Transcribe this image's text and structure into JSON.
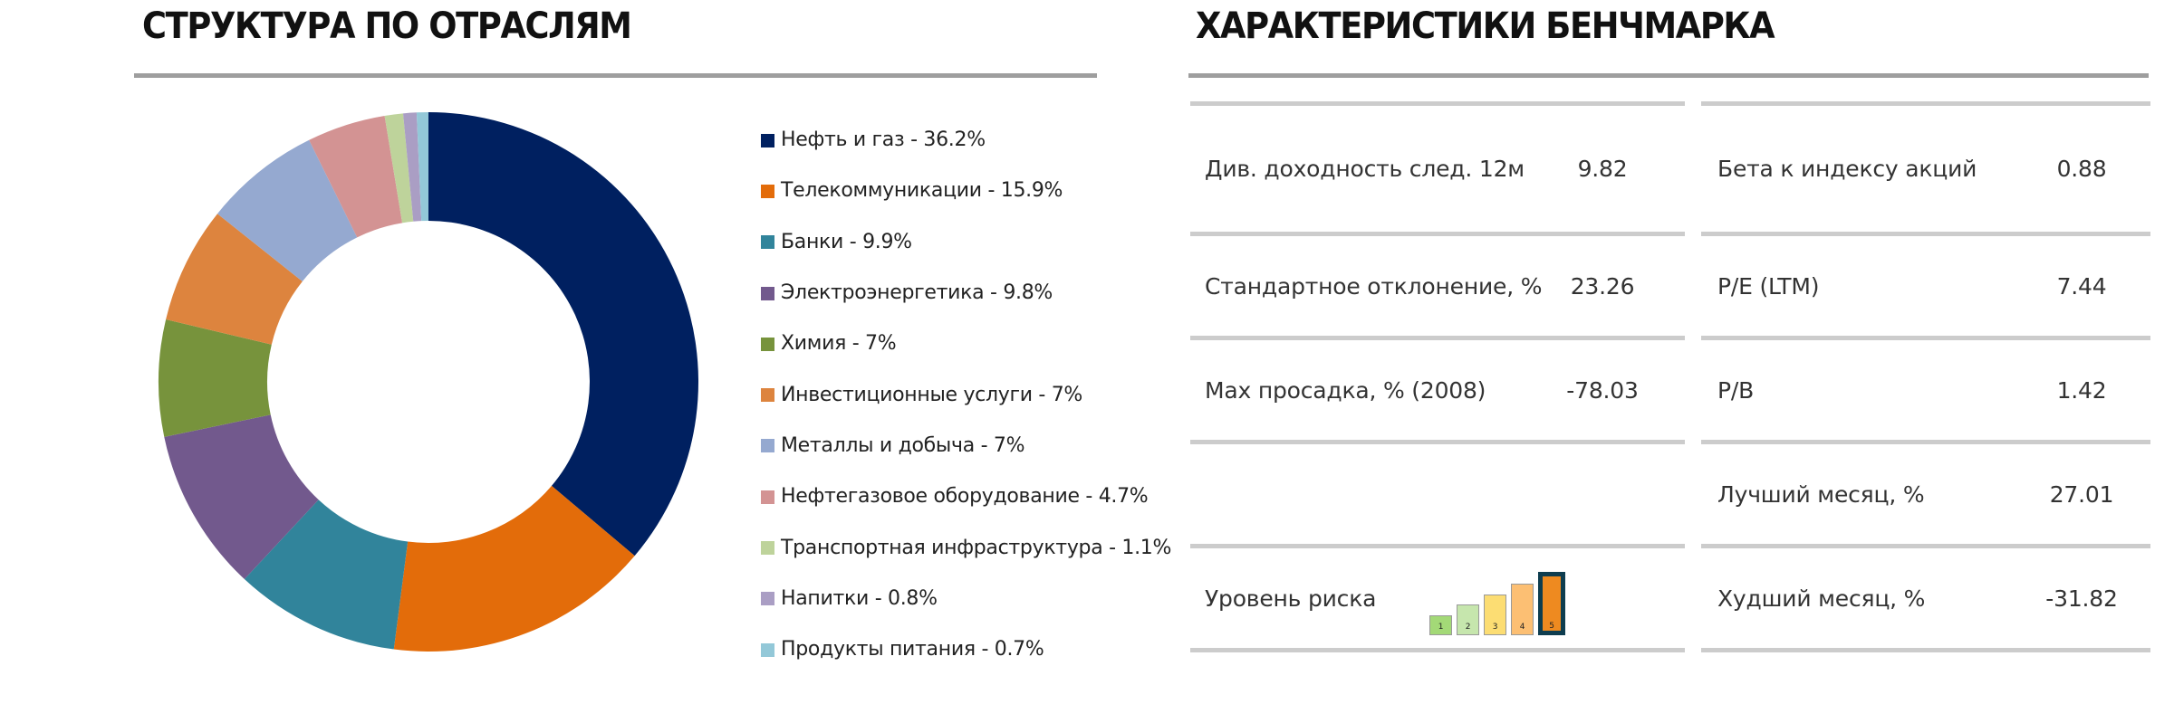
{
  "sections": {
    "structure_title": "СТРУКТУРА ПО ОТРАСЛЯМ",
    "benchmark_title": "ХАРАКТЕРИСТИКИ БЕНЧМАРКА"
  },
  "chart_data": {
    "type": "pie",
    "subtype": "donut",
    "title": "СТРУКТУРА ПО ОТРАСЛЯМ",
    "legend_position": "right",
    "categories": [
      "Нефть и газ",
      "Телекоммуникации",
      "Банки",
      "Электроэнергетика",
      "Химия",
      "Инвестиционные услуги",
      "Металлы и добыча",
      "Нефтегазовое оборудование",
      "Транспортная инфраструктура",
      "Напитки",
      "Продукты питания"
    ],
    "values": [
      36.2,
      15.9,
      9.9,
      9.8,
      7,
      7,
      7,
      4.7,
      1.1,
      0.8,
      0.7
    ],
    "colors": [
      "#002060",
      "#e36c0a",
      "#31849b",
      "#72598d",
      "#77933c",
      "#dd843e",
      "#95a9d0",
      "#d39393",
      "#bed39b",
      "#aa9ec4",
      "#93c8d8"
    ],
    "legend_labels": [
      "Нефть и газ - 36.2%",
      "Телекоммуникации - 15.9%",
      "Банки - 9.9%",
      "Электроэнергетика - 9.8%",
      "Химия - 7%",
      "Инвестиционные услуги - 7%",
      "Металлы и добыча - 7%",
      "Нефтегазовое оборудование - 4.7%",
      "Транспортная инфраструктура - 1.1%",
      "Напитки - 0.8%",
      "Продукты питания - 0.7%"
    ]
  },
  "metrics": {
    "left": [
      {
        "label": "Див. доходность след. 12м",
        "value": "9.82"
      },
      {
        "label": "Стандартное отклонение, %",
        "value": "23.26"
      },
      {
        "label": "Max просадка, % (2008)",
        "value": "-78.03"
      },
      {
        "label": "",
        "value": ""
      },
      {
        "label": "Уровень риска",
        "value": ""
      }
    ],
    "right": [
      {
        "label": "Бета к индексу акций",
        "value": "0.88"
      },
      {
        "label": "P/E (LTM)",
        "value": "7.44"
      },
      {
        "label": "P/B",
        "value": "1.42"
      },
      {
        "label": "Лучший месяц, %",
        "value": "27.01"
      },
      {
        "label": "Худший месяц, %",
        "value": "-31.82"
      }
    ]
  },
  "risk_scale": {
    "levels": [
      "1",
      "2",
      "3",
      "4",
      "5"
    ],
    "colors": [
      "#a3d977",
      "#c6e6ad",
      "#fcdd73",
      "#fcbf73",
      "#ee8a20"
    ],
    "heights": [
      22,
      34,
      45,
      57,
      70
    ],
    "selected": "5",
    "selected_border": "#0e3d4f"
  }
}
